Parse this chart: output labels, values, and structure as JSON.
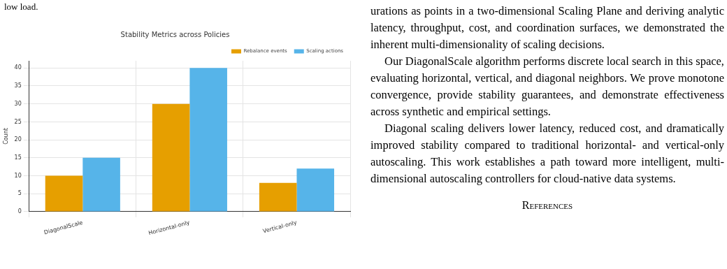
{
  "chart_data": {
    "type": "bar",
    "title": "Stability Metrics across Policies",
    "ylabel": "Count",
    "categories": [
      "DiagonalScale",
      "Horizontal-only",
      "Vertical-only"
    ],
    "series": [
      {
        "name": "Rebalance events",
        "color": "#e69f00",
        "values": [
          10,
          30,
          8
        ]
      },
      {
        "name": "Scaling actions",
        "color": "#56b4e9",
        "values": [
          15,
          40,
          12
        ]
      }
    ],
    "ylim": [
      0,
      42
    ],
    "yticks": [
      0,
      5,
      10,
      15,
      20,
      25,
      30,
      35,
      40
    ],
    "grid": true,
    "legend": "top right",
    "annotations": [
      "low load.",
      "urations as points in a two-dimensional Scaling Plane and deriving analytic latency, throughput, cost, and coordination surfaces, we demonstrated the inherent multi-dimensionality of scaling decisions.",
      "Our DiagonalScale algorithm performs discrete local search in this space, evaluating horizontal, vertical, and diagonal neighbors. We prove monotone convergence, provide stability guarantees, and demonstrate effectiveness across synthetic and empirical settings.",
      "Diagonal scaling delivers lower latency, reduced cost, and dramatically improved stability compared to traditional horizontal- and vertical-only autoscaling. This work establishes a path toward more intelligent, multi-dimensional autoscaling controllers for cloud-native data systems.",
      "References"
    ]
  }
}
